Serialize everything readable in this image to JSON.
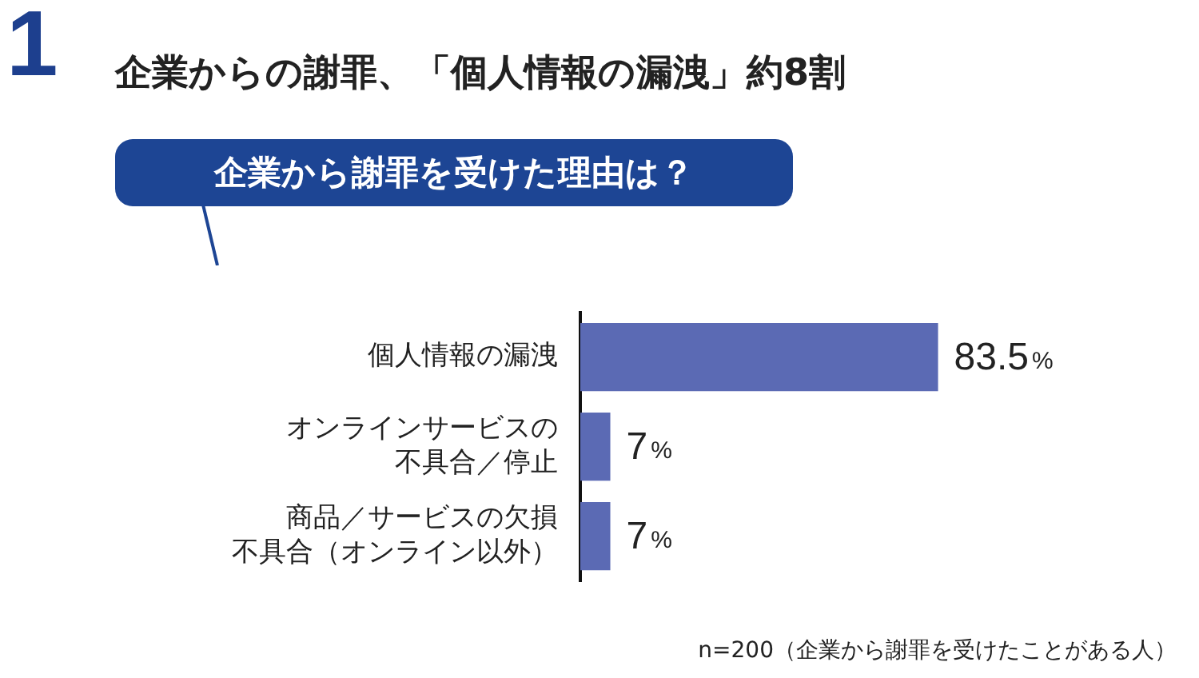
{
  "chart_data": {
    "type": "bar",
    "orientation": "horizontal",
    "title": "企業からの謝罪、「個人情報の漏洩」約8割",
    "subtitle": "企業から謝罪を受けた理由は？",
    "categories": [
      "個人情報の漏洩",
      "オンラインサービスの不具合／停止",
      "商品／サービスの欠損不具合（オンライン以外）"
    ],
    "values": [
      83.5,
      7,
      7
    ],
    "color": "#5b6ab4",
    "value_labels": [
      "83.5%",
      "7%",
      "7%"
    ],
    "tick_labels": "y",
    "legend": false,
    "annotations": [
      "1",
      "n=200（企業から謝罪を受けたことがある人）"
    ]
  }
}
